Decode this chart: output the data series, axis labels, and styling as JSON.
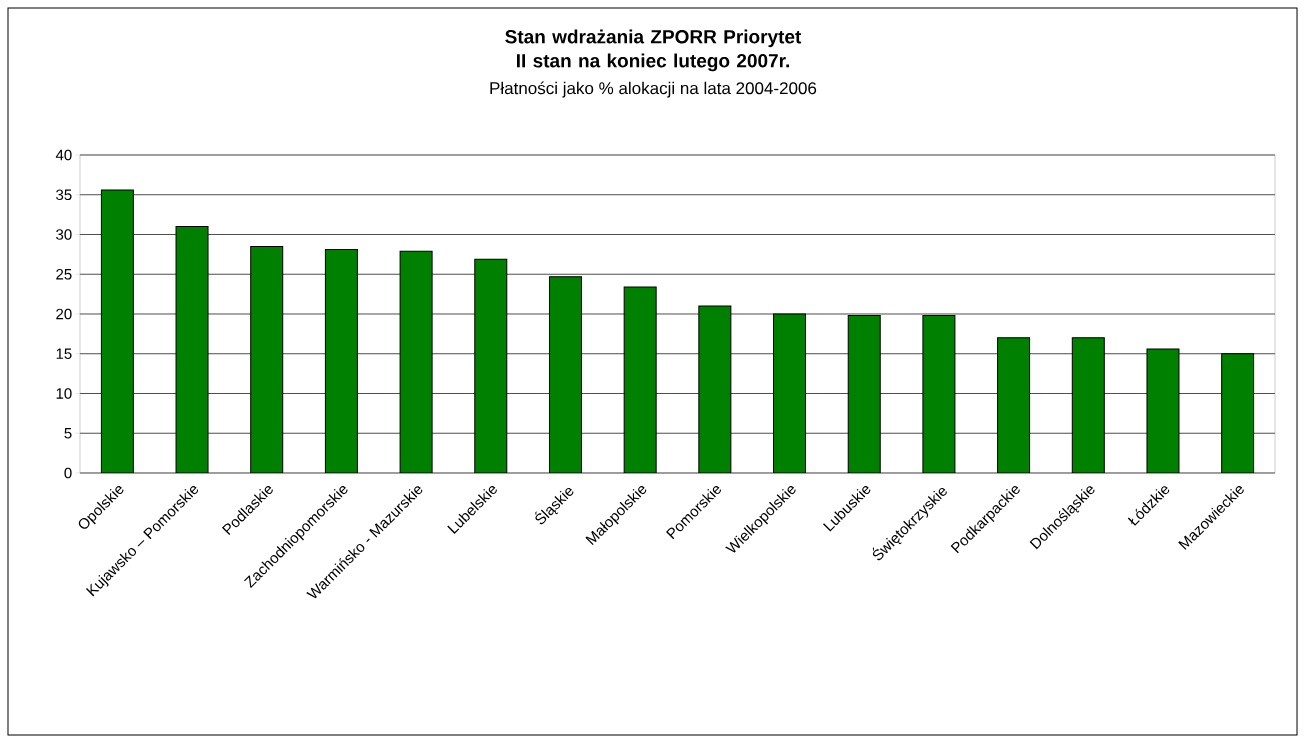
{
  "chart_data": {
    "type": "bar",
    "title": "Stan wdrażania ZPORR  Priorytet II stan na koniec lutego 2007r.",
    "subtitle": "Płatności jako % alokacji na lata 2004-2006",
    "categories": [
      "Opolskie",
      "Kujawsko – Pomorskie",
      "Podlaskie",
      "Zachodniopomorskie",
      "Warmińsko - Mazurskie",
      "Lubelskie",
      "Śląskie",
      "Małopolskie",
      "Pomorskie",
      "Wielkopolskie",
      "Lubuskie",
      "Świętokrzyskie",
      "Podkarpackie",
      "Dolnośląskie",
      "Łódzkie",
      "Mazowieckie"
    ],
    "values": [
      35.6,
      31.0,
      28.5,
      28.1,
      27.9,
      26.9,
      24.7,
      23.4,
      21.0,
      20.0,
      19.8,
      19.8,
      17.0,
      17.0,
      15.6,
      15.0
    ],
    "color": "#008000",
    "ylim": [
      0,
      40
    ],
    "yticks": [
      0,
      5,
      10,
      15,
      20,
      25,
      30,
      35,
      40
    ],
    "grid": "y"
  }
}
